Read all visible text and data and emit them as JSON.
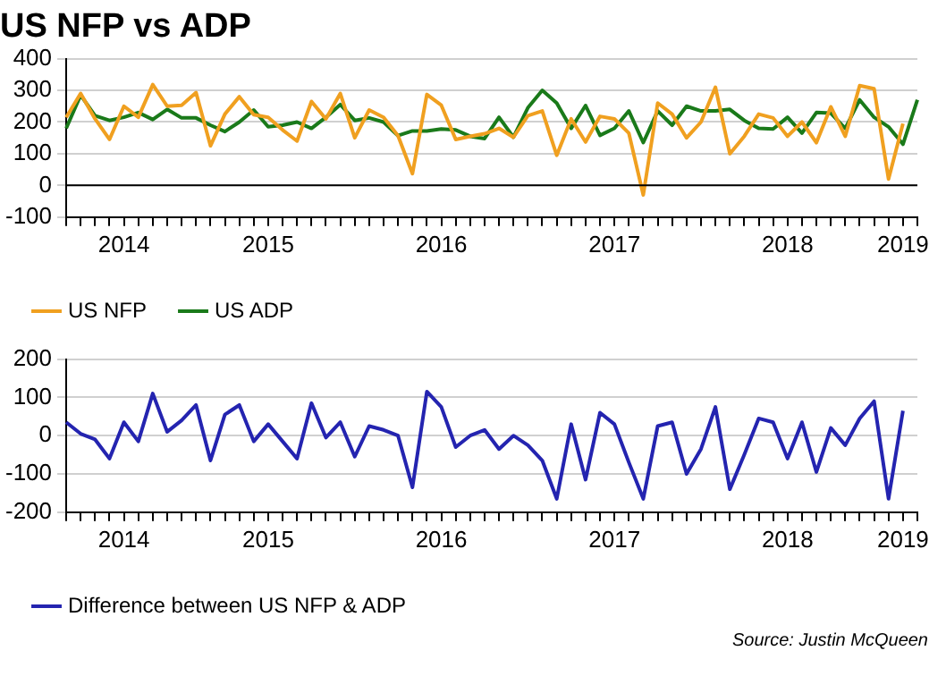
{
  "chart_data": [
    {
      "type": "line",
      "title": "US NFP vs ADP",
      "categories": [
        null,
        null,
        null,
        null,
        "2014",
        null,
        null,
        null,
        null,
        null,
        null,
        null,
        null,
        null,
        "2015",
        null,
        null,
        null,
        null,
        null,
        null,
        null,
        null,
        null,
        null,
        null,
        "2016",
        null,
        null,
        null,
        null,
        null,
        null,
        null,
        null,
        null,
        null,
        null,
        "2017",
        null,
        null,
        null,
        null,
        null,
        null,
        null,
        null,
        null,
        null,
        null,
        "2018",
        null,
        null,
        null,
        null,
        null,
        null,
        null,
        "2019",
        null
      ],
      "series": [
        {
          "name": "US NFP",
          "color": "#f0a020",
          "values": [
            215,
            290,
            210,
            145,
            250,
            215,
            318,
            250,
            253,
            293,
            125,
            225,
            280,
            223,
            215,
            175,
            140,
            265,
            210,
            290,
            150,
            238,
            215,
            157,
            37,
            287,
            253,
            145,
            155,
            163,
            180,
            152,
            220,
            235,
            95,
            210,
            137,
            218,
            210,
            165,
            -30,
            260,
            225,
            150,
            200,
            310,
            100,
            155,
            225,
            213,
            155,
            200,
            135,
            248,
            155,
            315,
            305,
            20,
            195,
            null
          ]
        },
        {
          "name": "US ADP",
          "color": "#1a7a1a",
          "values": [
            180,
            285,
            220,
            205,
            215,
            230,
            208,
            240,
            213,
            213,
            190,
            170,
            200,
            238,
            185,
            190,
            200,
            180,
            215,
            255,
            205,
            213,
            200,
            157,
            172,
            172,
            178,
            175,
            155,
            148,
            215,
            152,
            245,
            300,
            260,
            180,
            252,
            158,
            180,
            235,
            135,
            235,
            190,
            250,
            235,
            235,
            240,
            205,
            180,
            178,
            215,
            165,
            230,
            228,
            180,
            270,
            215,
            185,
            130,
            270
          ]
        }
      ],
      "ylim": [
        -100,
        400
      ],
      "yticks": [
        -100,
        0,
        100,
        200,
        300,
        400
      ],
      "grid": "y",
      "legend": "bottom left",
      "marker": "none",
      "line_style": "solid",
      "ref_lines": [
        {
          "axis": "y",
          "value": 0,
          "color": "#000000"
        }
      ]
    },
    {
      "type": "line",
      "categories": [
        null,
        null,
        null,
        null,
        "2014",
        null,
        null,
        null,
        null,
        null,
        null,
        null,
        null,
        null,
        "2015",
        null,
        null,
        null,
        null,
        null,
        null,
        null,
        null,
        null,
        null,
        null,
        "2016",
        null,
        null,
        null,
        null,
        null,
        null,
        null,
        null,
        null,
        null,
        null,
        "2017",
        null,
        null,
        null,
        null,
        null,
        null,
        null,
        null,
        null,
        null,
        null,
        "2018",
        null,
        null,
        null,
        null,
        null,
        null,
        null,
        "2019",
        null
      ],
      "series": [
        {
          "name": "Difference between US NFP & ADP",
          "color": "#2424b0",
          "values": [
            35,
            5,
            -10,
            -60,
            35,
            -15,
            110,
            10,
            40,
            80,
            -65,
            55,
            80,
            -15,
            30,
            -15,
            -60,
            85,
            -5,
            35,
            -55,
            25,
            15,
            0,
            -135,
            115,
            75,
            -30,
            0,
            15,
            -35,
            0,
            -25,
            -65,
            -165,
            30,
            -115,
            60,
            30,
            -70,
            -165,
            25,
            35,
            -100,
            -35,
            75,
            -140,
            -50,
            45,
            35,
            -60,
            35,
            -95,
            20,
            -25,
            45,
            90,
            -165,
            65,
            null
          ]
        }
      ],
      "ylim": [
        -200,
        200
      ],
      "yticks": [
        -200,
        -100,
        0,
        100,
        200
      ],
      "grid": "y",
      "legend": "bottom left",
      "marker": "none",
      "line_style": "solid",
      "annotations": [
        "Source: Justin McQueen"
      ]
    }
  ]
}
